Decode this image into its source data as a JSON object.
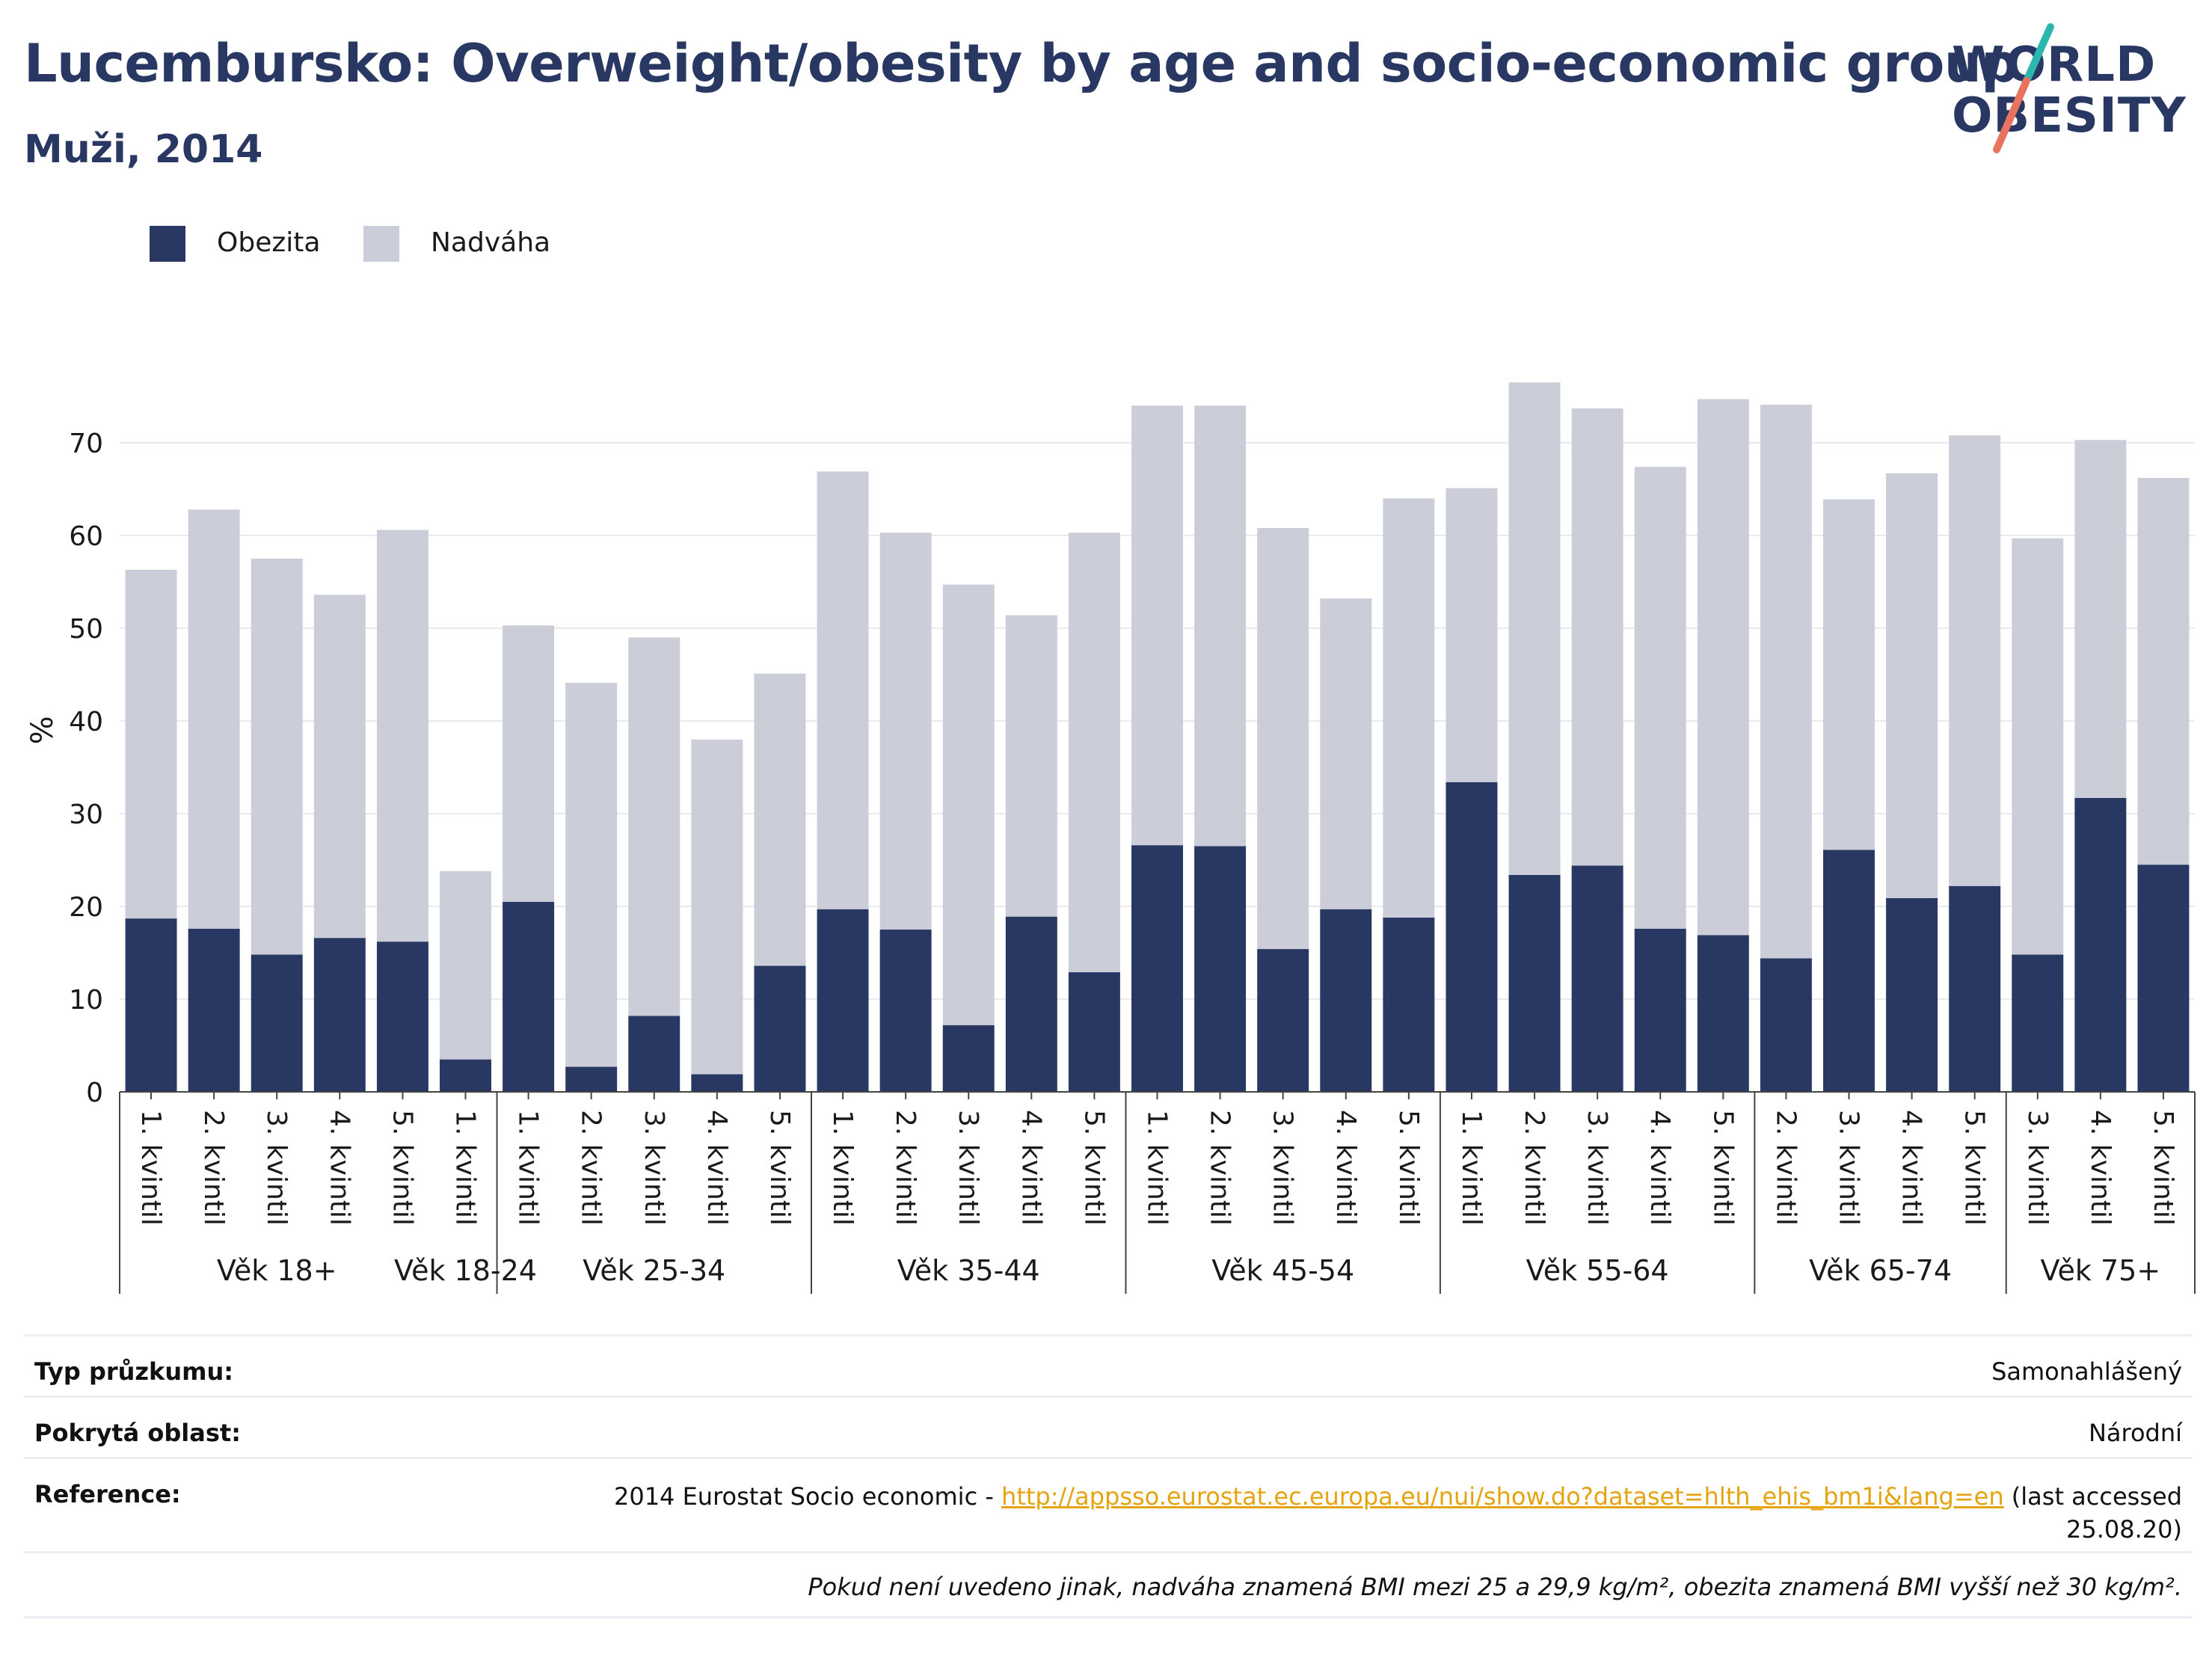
{
  "title": "Lucembursko: Overweight/obesity by age and socio-economic group",
  "subtitle": "Muži, 2014",
  "logo": {
    "line1": "WORLD",
    "line2": "OBESITY"
  },
  "colors": {
    "obesity": "#283863",
    "overweight": "#cbcdd9",
    "title": "#283863",
    "link": "#e6a310",
    "logo_slash_top": "#2bb6b0",
    "logo_slash_bottom": "#e8735f"
  },
  "legend": [
    {
      "label": "Obezita",
      "color": "#283863"
    },
    {
      "label": "Nadváha",
      "color": "#cbcdd9"
    }
  ],
  "chart_data": {
    "type": "bar",
    "stacked": true,
    "ylabel": "%",
    "ylim": [
      0,
      78
    ],
    "yticks": [
      0,
      10,
      20,
      30,
      40,
      50,
      60,
      70
    ],
    "grid": true,
    "legend_position": "top-left",
    "categories": [
      "1. kvintil",
      "2. kvintil",
      "3. kvintil",
      "4. kvintil",
      "5. kvintil",
      "1. kvintil",
      "1. kvintil",
      "2. kvintil",
      "3. kvintil",
      "4. kvintil",
      "5. kvintil",
      "1. kvintil",
      "2. kvintil",
      "3. kvintil",
      "4. kvintil",
      "5. kvintil",
      "1. kvintil",
      "2. kvintil",
      "3. kvintil",
      "4. kvintil",
      "5. kvintil",
      "1. kvintil",
      "2. kvintil",
      "3. kvintil",
      "4. kvintil",
      "5. kvintil",
      "2. kvintil",
      "3. kvintil",
      "4. kvintil",
      "5. kvintil",
      "3. kvintil",
      "4. kvintil",
      "5. kvintil"
    ],
    "groups": [
      {
        "label": "Věk 18+",
        "count": 5
      },
      {
        "label": "Věk 18-24",
        "count": 1
      },
      {
        "label": "Věk 25-34",
        "count": 5
      },
      {
        "label": "Věk 35-44",
        "count": 5
      },
      {
        "label": "Věk 45-54",
        "count": 5
      },
      {
        "label": "Věk 55-64",
        "count": 5
      },
      {
        "label": "Věk 65-74",
        "count": 4
      },
      {
        "label": "Věk 75+",
        "count": 3
      }
    ],
    "series": [
      {
        "name": "Obezita",
        "values": [
          18.7,
          17.6,
          14.8,
          16.6,
          16.2,
          3.5,
          20.5,
          2.7,
          8.2,
          1.9,
          13.6,
          19.7,
          17.5,
          7.2,
          18.9,
          12.9,
          26.6,
          26.5,
          15.4,
          19.7,
          18.8,
          33.4,
          23.4,
          24.4,
          17.6,
          16.9,
          14.4,
          26.1,
          20.9,
          22.2,
          14.8,
          31.7,
          24.5
        ]
      },
      {
        "name": "Nadváha",
        "values": [
          37.6,
          45.2,
          42.7,
          37.0,
          44.4,
          20.3,
          29.8,
          41.4,
          40.8,
          36.1,
          31.5,
          47.2,
          42.8,
          47.5,
          32.5,
          47.4,
          47.4,
          47.5,
          45.4,
          33.5,
          45.2,
          31.7,
          53.1,
          49.3,
          49.8,
          57.8,
          59.7,
          37.8,
          45.8,
          48.6,
          44.9,
          38.6,
          41.7
        ]
      }
    ]
  },
  "info": {
    "survey_type_label": "Typ průzkumu:",
    "survey_type_value": "Samonahlášený",
    "coverage_label": "Pokrytá oblast:",
    "coverage_value": "Národní",
    "reference_label": "Reference:",
    "reference_prefix": "2014 Eurostat Socio economic - ",
    "reference_link": "http://appsso.eurostat.ec.europa.eu/nui/show.do?dataset=hlth_ehis_bm1i&lang=en",
    "reference_suffix": " (last accessed",
    "reference_date": "25.08.20)",
    "footnote": "Pokud není uvedeno jinak, nadváha znamená BMI mezi 25 a 29,9 kg/m², obezita znamená BMI vyšší než 30 kg/m²."
  }
}
